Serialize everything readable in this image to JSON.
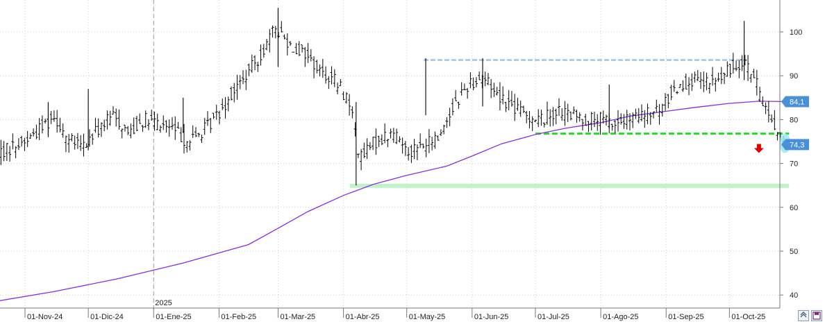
{
  "chart_data": {
    "type": "ohlc",
    "y_axis": {
      "ticks": [
        40,
        50,
        60,
        70,
        80,
        90,
        100
      ],
      "ylim": [
        38.2,
        107
      ],
      "position": "right"
    },
    "x_axis": {
      "ticks": [
        "01-Nov-24",
        "01-Dic-24",
        "01-Ene-25",
        "01-Feb-25",
        "01-Mar-25",
        "01-Abr-25",
        "01-May-25",
        "01-Jun-25",
        "01-Jul-25",
        "01-Ago-25",
        "01-Sep-25",
        "01-Oct-25"
      ],
      "year_marker": "2025"
    },
    "price_path": [
      [
        "2024-10-15",
        72
      ],
      [
        "2024-10-22",
        73
      ],
      [
        "2024-11-01",
        75
      ],
      [
        "2024-11-08",
        78
      ],
      [
        "2024-11-15",
        81
      ],
      [
        "2024-11-22",
        75
      ],
      [
        "2024-11-29",
        74
      ],
      [
        "2024-12-06",
        78
      ],
      [
        "2024-12-13",
        81
      ],
      [
        "2024-12-20",
        77
      ],
      [
        "2024-12-27",
        80
      ],
      [
        "2025-01-03",
        79
      ],
      [
        "2025-01-10",
        78
      ],
      [
        "2025-01-17",
        75
      ],
      [
        "2025-01-24",
        77
      ],
      [
        "2025-01-31",
        81
      ],
      [
        "2025-02-07",
        86
      ],
      [
        "2025-02-14",
        90
      ],
      [
        "2025-02-21",
        95
      ],
      [
        "2025-02-28",
        101
      ],
      [
        "2025-03-07",
        97
      ],
      [
        "2025-03-14",
        95
      ],
      [
        "2025-03-21",
        91
      ],
      [
        "2025-03-28",
        89
      ],
      [
        "2025-04-04",
        84
      ],
      [
        "2025-04-09",
        71
      ],
      [
        "2025-04-16",
        75
      ],
      [
        "2025-04-25",
        77
      ],
      [
        "2025-05-02",
        73
      ],
      [
        "2025-05-09",
        74
      ],
      [
        "2025-05-16",
        76
      ],
      [
        "2025-05-23",
        83
      ],
      [
        "2025-05-30",
        88
      ],
      [
        "2025-06-06",
        90
      ],
      [
        "2025-06-13",
        86
      ],
      [
        "2025-06-20",
        83
      ],
      [
        "2025-06-27",
        81
      ],
      [
        "2025-07-04",
        80
      ],
      [
        "2025-07-11",
        82
      ],
      [
        "2025-07-18",
        81
      ],
      [
        "2025-07-25",
        80
      ],
      [
        "2025-08-01",
        80
      ],
      [
        "2025-08-08",
        79
      ],
      [
        "2025-08-15",
        80
      ],
      [
        "2025-08-22",
        81
      ],
      [
        "2025-08-29",
        82
      ],
      [
        "2025-09-05",
        87
      ],
      [
        "2025-09-12",
        89
      ],
      [
        "2025-09-19",
        88
      ],
      [
        "2025-09-26",
        89
      ],
      [
        "2025-10-03",
        92
      ],
      [
        "2025-10-08",
        94
      ],
      [
        "2025-10-13",
        89
      ],
      [
        "2025-10-17",
        84
      ],
      [
        "2025-10-21",
        80
      ],
      [
        "2025-10-24",
        77
      ],
      [
        "2025-10-28",
        74.3
      ]
    ],
    "moving_average": {
      "color": "#8a2be2",
      "points": [
        [
          "2024-10-15",
          38.3
        ],
        [
          "2024-11-15",
          40.8
        ],
        [
          "2024-12-15",
          43.7
        ],
        [
          "2025-01-15",
          47.3
        ],
        [
          "2025-02-15",
          51.5
        ],
        [
          "2025-03-01",
          55.2
        ],
        [
          "2025-03-15",
          59.0
        ],
        [
          "2025-04-01",
          62.7
        ],
        [
          "2025-04-15",
          65.2
        ],
        [
          "2025-05-01",
          67.3
        ],
        [
          "2025-05-20",
          69.4
        ],
        [
          "2025-06-01",
          71.7
        ],
        [
          "2025-06-15",
          74.5
        ],
        [
          "2025-07-01",
          76.6
        ],
        [
          "2025-07-15",
          78.0
        ],
        [
          "2025-08-01",
          79.3
        ],
        [
          "2025-08-15",
          80.8
        ],
        [
          "2025-09-01",
          81.9
        ],
        [
          "2025-09-15",
          82.8
        ],
        [
          "2025-10-01",
          83.7
        ],
        [
          "2025-10-15",
          84.2
        ],
        [
          "2025-10-28",
          84.1
        ]
      ]
    },
    "levels": [
      {
        "kind": "resistance",
        "value": 93.6,
        "from": "2025-05-09",
        "to": "2025-10-08",
        "color": "#9ec6e6",
        "style": "dashed"
      },
      {
        "kind": "support",
        "value": 76.8,
        "from": "2025-07-01",
        "to": "2025-10-28",
        "color": "#22dd22",
        "style": "dashed"
      },
      {
        "kind": "support-zone",
        "value": 64.9,
        "from": "2025-04-04",
        "to": "2025-10-28",
        "color": "#bff5c6",
        "style": "band"
      }
    ],
    "last_price": {
      "value": 74.3,
      "label": "74,3",
      "color": "#4a90d9"
    },
    "ma_value": {
      "value": 84.1,
      "label": "84,1",
      "color": "#4a90d9"
    },
    "signal": {
      "kind": "down-arrow",
      "date": "2025-10-15",
      "value": 73.5,
      "color": "#e00000"
    },
    "highlight": {
      "date": "2025-10-28",
      "value": 74.6,
      "color": "#9ee8f0"
    },
    "colors": {
      "bars": "#000000",
      "grid": "#cccccc",
      "background": "#ffffff"
    },
    "grid": true
  },
  "controls": {
    "zoom_icon": "zoom-chevrons-icon",
    "save_icon": "save-disk-icon"
  }
}
